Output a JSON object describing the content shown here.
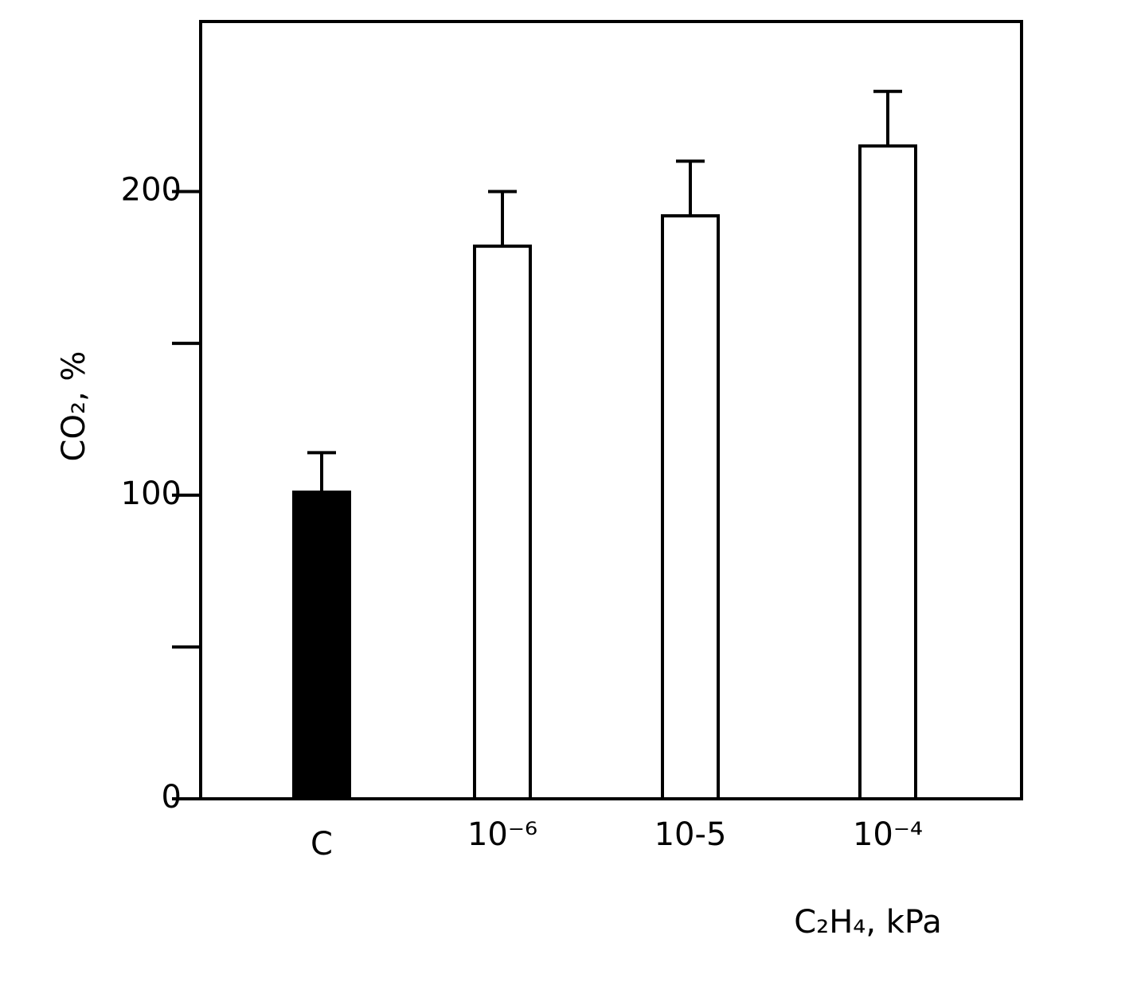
{
  "chart_data": {
    "type": "bar",
    "categories": [
      "C",
      "10⁻⁶",
      "10-5",
      "10⁻⁴"
    ],
    "values": [
      101,
      182,
      192,
      215
    ],
    "errors": [
      13,
      18,
      18,
      18
    ],
    "colors": [
      "#000000",
      "#ffffff",
      "#ffffff",
      "#ffffff"
    ],
    "ylim": [
      0,
      256
    ],
    "yticks": [
      0,
      100,
      200
    ],
    "yminor": [
      50,
      150
    ],
    "y_label": "CO₂, %",
    "x_label": "C₂H₄, kPa"
  }
}
